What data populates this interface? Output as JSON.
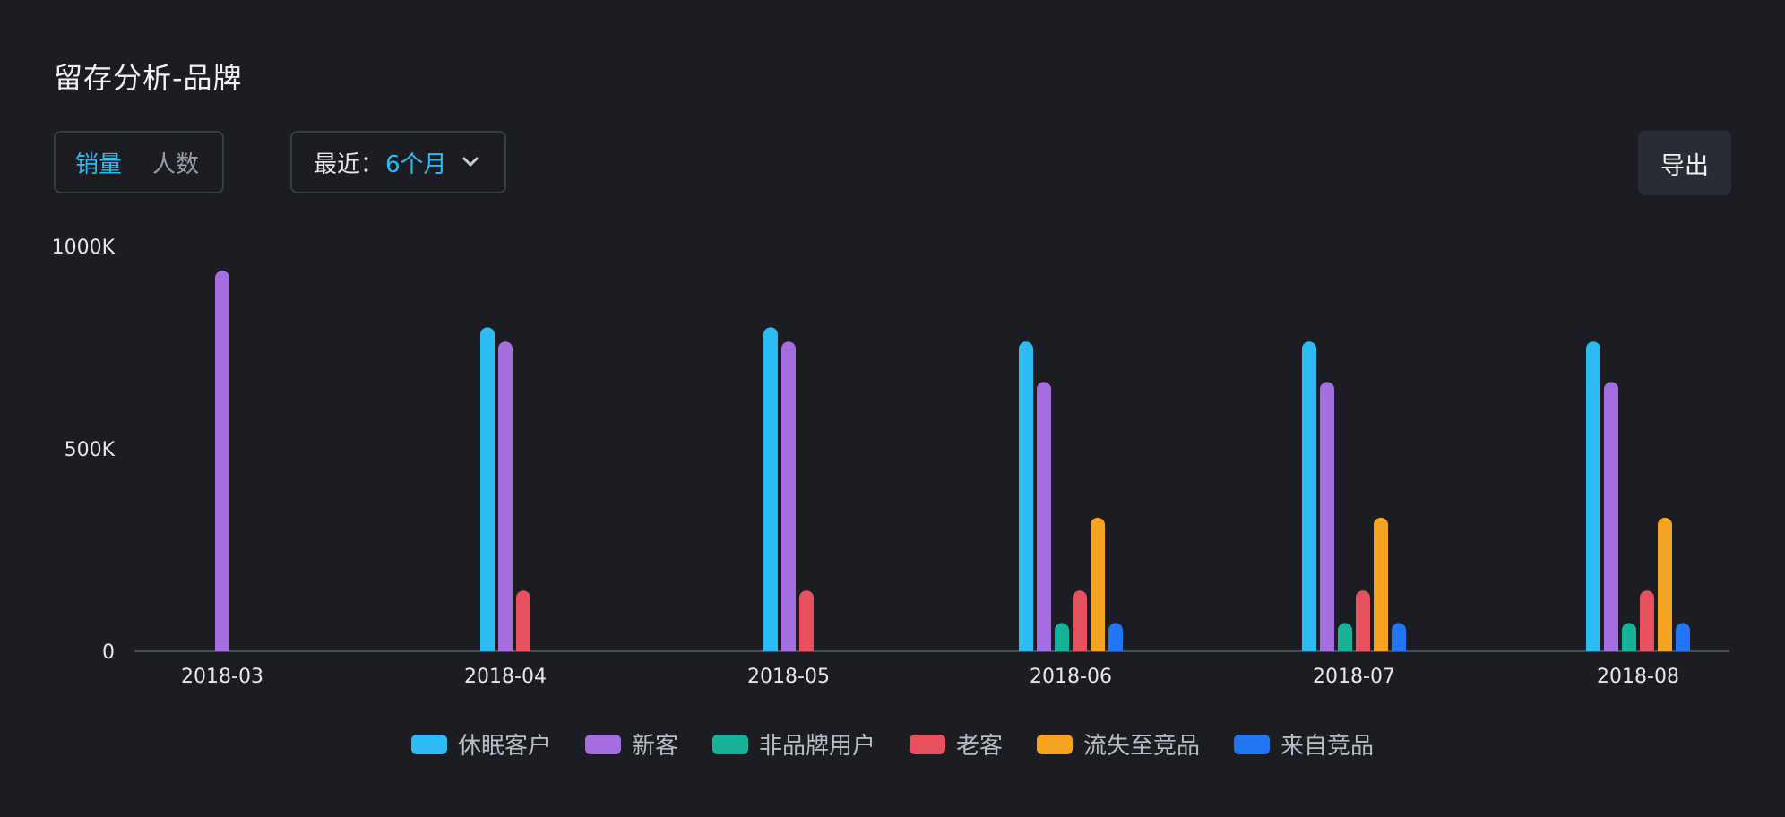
{
  "header": {
    "title": "留存分析-品牌"
  },
  "toggle": {
    "options": [
      "销量",
      "人数"
    ],
    "active_index": 0
  },
  "range": {
    "label": "最近：",
    "value": "6个月"
  },
  "toolbar": {
    "export_label": "导出"
  },
  "colors": {
    "accent": "#2dbbf3",
    "series": [
      "#2dbbf3",
      "#a46ee0",
      "#16b399",
      "#e7505f",
      "#f5a321",
      "#2276f5"
    ]
  },
  "chart_data": {
    "type": "bar",
    "categories": [
      "2018-03",
      "2018-04",
      "2018-05",
      "2018-06",
      "2018-07",
      "2018-08"
    ],
    "yticks": [
      "0",
      "500K",
      "1000K"
    ],
    "ylim": [
      0,
      1000000
    ],
    "grid": false,
    "legend_position": "bottom",
    "series": [
      {
        "name": "休眠客户",
        "values": [
          0,
          800000,
          800000,
          765000,
          765000,
          765000
        ]
      },
      {
        "name": "新客",
        "values": [
          940000,
          765000,
          765000,
          665000,
          665000,
          665000
        ]
      },
      {
        "name": "非品牌用户",
        "values": [
          0,
          0,
          0,
          70000,
          70000,
          70000
        ]
      },
      {
        "name": "老客",
        "values": [
          0,
          150000,
          150000,
          150000,
          150000,
          150000
        ]
      },
      {
        "name": "流失至竞品",
        "values": [
          0,
          0,
          0,
          330000,
          330000,
          330000
        ]
      },
      {
        "name": "来自竞品",
        "values": [
          0,
          0,
          0,
          70000,
          70000,
          70000
        ]
      }
    ]
  }
}
